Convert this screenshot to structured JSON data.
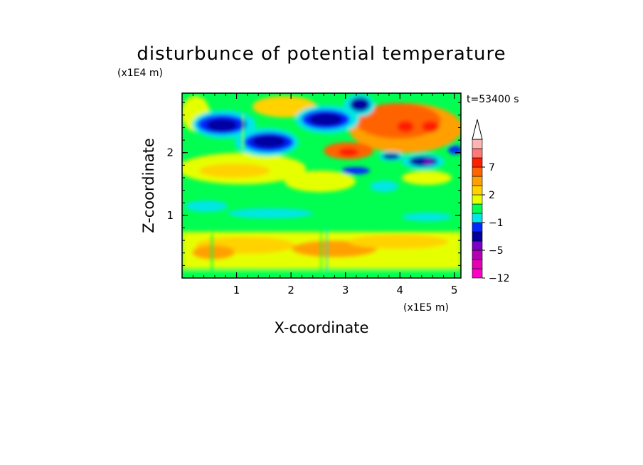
{
  "chart_data": {
    "type": "heatmap",
    "title": "disturbunce of potential temperature",
    "time_label": "t=53400 s",
    "xlabel": "X-coordinate",
    "ylabel": "Z-coordinate",
    "x_unit": "(x1E5 m)",
    "y_unit": "(x1E4 m)",
    "xlim": [
      0,
      5.12
    ],
    "ylim": [
      0,
      2.95
    ],
    "x_ticks": [
      1,
      2,
      3,
      4,
      5
    ],
    "y_ticks": [
      1,
      2
    ],
    "colorbar": {
      "labeled_levels": [
        "7",
        "2",
        "−1",
        "−5",
        "−12"
      ],
      "colors": [
        "#ff00c8",
        "#e600b4",
        "#b400b4",
        "#7800c8",
        "#0000a0",
        "#0028ff",
        "#00e6e6",
        "#00ff50",
        "#e6ff00",
        "#ffd200",
        "#ffa000",
        "#ff6400",
        "#ff1e00",
        "#ff7878",
        "#ffb4b4"
      ]
    },
    "field_description": [
      {
        "region": "x 0.2-0.8, z 2.5-2.8",
        "value": "strongly negative (blue/purple)"
      },
      {
        "region": "x 1.0-2.0, z 2.2-2.5",
        "value": "strongly negative (blue)"
      },
      {
        "region": "x 2.3-3.1, z 2.4-2.7",
        "value": "strongly negative (blue)"
      },
      {
        "region": "x 3.2-3.6, z 2.7-2.9",
        "value": "strongly negative (blue)"
      },
      {
        "region": "x 3.9-4.7, z 2.4-2.6",
        "value": "strongly positive (red/orange)"
      },
      {
        "region": "x 2.7-3.3, z 2.0-2.2",
        "value": "strongly positive (red)"
      },
      {
        "region": "x 4.1-4.8, z 1.9-2.0",
        "value": "strongly negative (blue)"
      },
      {
        "region": "z 1.3-1.7",
        "value": "near zero (green/cyan)"
      },
      {
        "region": "z 0.3-0.6",
        "value": "positive (yellow/orange)"
      }
    ]
  }
}
